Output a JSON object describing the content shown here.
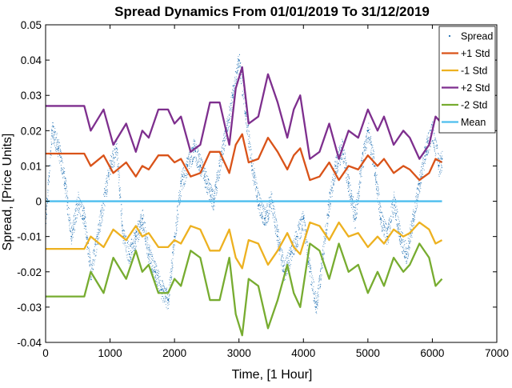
{
  "chart_data": {
    "type": "line",
    "title": "Spread Dynamics From 01/01/2019 To 31/12/2019",
    "xlabel": "Time, [1 Hour]",
    "ylabel": "Spread, [Price Units]",
    "xlim": [
      0,
      7000
    ],
    "ylim": [
      -0.04,
      0.05
    ],
    "xticks": [
      0,
      1000,
      2000,
      3000,
      4000,
      5000,
      6000,
      7000
    ],
    "xtick_labels": [
      "0",
      "1000",
      "2000",
      "3000",
      "4000",
      "5000",
      "6000",
      "7000"
    ],
    "yticks": [
      -0.04,
      -0.03,
      -0.02,
      -0.01,
      0,
      0.01,
      0.02,
      0.03,
      0.04,
      0.05
    ],
    "ytick_labels": [
      "-0.04",
      "-0.03",
      "-0.02",
      "-0.01",
      "0",
      "0.01",
      "0.02",
      "0.03",
      "0.04",
      "0.05"
    ],
    "grid": false,
    "legend_position": "top-right",
    "series": [
      {
        "name": "Spread",
        "style": "dots",
        "color": "#1f6fb2",
        "x": [
          0,
          100,
          200,
          300,
          400,
          500,
          600,
          700,
          800,
          900,
          1000,
          1100,
          1200,
          1300,
          1400,
          1500,
          1600,
          1700,
          1800,
          1900,
          2000,
          2100,
          2200,
          2300,
          2400,
          2500,
          2600,
          2700,
          2800,
          2900,
          3000,
          3100,
          3200,
          3300,
          3400,
          3500,
          3600,
          3700,
          3800,
          3900,
          4000,
          4100,
          4200,
          4300,
          4400,
          4500,
          4600,
          4700,
          4800,
          4900,
          5000,
          5100,
          5200,
          5300,
          5400,
          5500,
          5600,
          5700,
          5800,
          5900,
          6000,
          6100,
          6150
        ],
        "y": [
          -0.005,
          0.02,
          0.015,
          0.005,
          -0.01,
          0.0,
          -0.005,
          -0.02,
          -0.01,
          0.0,
          0.01,
          0.015,
          -0.01,
          -0.015,
          -0.01,
          -0.005,
          -0.015,
          -0.02,
          -0.025,
          -0.028,
          -0.01,
          0.005,
          0.01,
          0.015,
          0.01,
          0.005,
          0.0,
          0.01,
          0.02,
          0.03,
          0.04,
          0.025,
          0.01,
          0.0,
          -0.005,
          0.0,
          -0.01,
          -0.02,
          -0.015,
          -0.01,
          -0.005,
          -0.02,
          -0.03,
          -0.015,
          0.0,
          0.01,
          0.015,
          0.005,
          -0.005,
          0.01,
          0.02,
          0.01,
          -0.005,
          -0.01,
          0.0,
          -0.01,
          -0.015,
          -0.005,
          0.005,
          0.015,
          0.02,
          0.01,
          0.012
        ]
      },
      {
        "name": "+1 Std",
        "style": "line",
        "color": "#d95319",
        "x": [
          0,
          600,
          700,
          900,
          1050,
          1250,
          1400,
          1500,
          1600,
          1750,
          1900,
          2000,
          2100,
          2250,
          2400,
          2550,
          2700,
          2850,
          2950,
          3050,
          3150,
          3300,
          3450,
          3600,
          3750,
          3850,
          3950,
          4100,
          4250,
          4400,
          4550,
          4700,
          4850,
          5000,
          5150,
          5250,
          5400,
          5550,
          5650,
          5800,
          5950,
          6050,
          6150
        ],
        "y": [
          0.0135,
          0.0135,
          0.01,
          0.013,
          0.008,
          0.011,
          0.007,
          0.01,
          0.009,
          0.013,
          0.013,
          0.011,
          0.012,
          0.007,
          0.008,
          0.014,
          0.014,
          0.008,
          0.016,
          0.019,
          0.011,
          0.012,
          0.018,
          0.014,
          0.009,
          0.013,
          0.015,
          0.006,
          0.007,
          0.011,
          0.006,
          0.01,
          0.009,
          0.013,
          0.01,
          0.012,
          0.008,
          0.01,
          0.009,
          0.006,
          0.008,
          0.012,
          0.011
        ]
      },
      {
        "name": "-1 Std",
        "style": "line",
        "color": "#edb120",
        "x": [
          0,
          600,
          700,
          900,
          1050,
          1250,
          1400,
          1500,
          1600,
          1750,
          1900,
          2000,
          2100,
          2250,
          2400,
          2550,
          2700,
          2850,
          2950,
          3050,
          3150,
          3300,
          3450,
          3600,
          3750,
          3850,
          3950,
          4100,
          4250,
          4400,
          4550,
          4700,
          4850,
          5000,
          5150,
          5250,
          5400,
          5550,
          5650,
          5800,
          5950,
          6050,
          6150
        ],
        "y": [
          -0.0135,
          -0.0135,
          -0.01,
          -0.013,
          -0.008,
          -0.011,
          -0.007,
          -0.01,
          -0.009,
          -0.013,
          -0.013,
          -0.011,
          -0.012,
          -0.007,
          -0.008,
          -0.014,
          -0.014,
          -0.008,
          -0.016,
          -0.019,
          -0.011,
          -0.012,
          -0.018,
          -0.014,
          -0.009,
          -0.013,
          -0.015,
          -0.006,
          -0.007,
          -0.011,
          -0.006,
          -0.01,
          -0.009,
          -0.013,
          -0.01,
          -0.012,
          -0.008,
          -0.01,
          -0.009,
          -0.006,
          -0.008,
          -0.012,
          -0.011
        ]
      },
      {
        "name": "+2 Std",
        "style": "line",
        "color": "#7e2f8e",
        "x": [
          0,
          600,
          700,
          900,
          1050,
          1250,
          1400,
          1500,
          1600,
          1750,
          1900,
          2000,
          2100,
          2250,
          2400,
          2550,
          2700,
          2850,
          2950,
          3050,
          3150,
          3300,
          3450,
          3600,
          3750,
          3850,
          3950,
          4100,
          4250,
          4400,
          4550,
          4700,
          4850,
          5000,
          5150,
          5250,
          5400,
          5550,
          5650,
          5800,
          5950,
          6050,
          6150
        ],
        "y": [
          0.027,
          0.027,
          0.02,
          0.026,
          0.016,
          0.022,
          0.014,
          0.02,
          0.018,
          0.026,
          0.026,
          0.022,
          0.024,
          0.014,
          0.016,
          0.028,
          0.028,
          0.016,
          0.032,
          0.038,
          0.022,
          0.024,
          0.036,
          0.028,
          0.018,
          0.026,
          0.03,
          0.012,
          0.014,
          0.022,
          0.012,
          0.02,
          0.018,
          0.026,
          0.02,
          0.024,
          0.016,
          0.02,
          0.018,
          0.012,
          0.016,
          0.024,
          0.022
        ]
      },
      {
        "name": "-2 Std",
        "style": "line",
        "color": "#77ac30",
        "x": [
          0,
          600,
          700,
          900,
          1050,
          1250,
          1400,
          1500,
          1600,
          1750,
          1900,
          2000,
          2100,
          2250,
          2400,
          2550,
          2700,
          2850,
          2950,
          3050,
          3150,
          3300,
          3450,
          3600,
          3750,
          3850,
          3950,
          4100,
          4250,
          4400,
          4550,
          4700,
          4850,
          5000,
          5150,
          5250,
          5400,
          5550,
          5650,
          5800,
          5950,
          6050,
          6150
        ],
        "y": [
          -0.027,
          -0.027,
          -0.02,
          -0.026,
          -0.016,
          -0.022,
          -0.014,
          -0.02,
          -0.018,
          -0.026,
          -0.026,
          -0.022,
          -0.024,
          -0.014,
          -0.016,
          -0.028,
          -0.028,
          -0.016,
          -0.032,
          -0.038,
          -0.022,
          -0.024,
          -0.036,
          -0.028,
          -0.018,
          -0.026,
          -0.03,
          -0.012,
          -0.014,
          -0.022,
          -0.012,
          -0.02,
          -0.018,
          -0.026,
          -0.02,
          -0.024,
          -0.016,
          -0.02,
          -0.018,
          -0.012,
          -0.016,
          -0.024,
          -0.022
        ]
      },
      {
        "name": "Mean",
        "style": "line",
        "color": "#4dbeee",
        "x": [
          0,
          6150
        ],
        "y": [
          0,
          0
        ]
      }
    ]
  }
}
